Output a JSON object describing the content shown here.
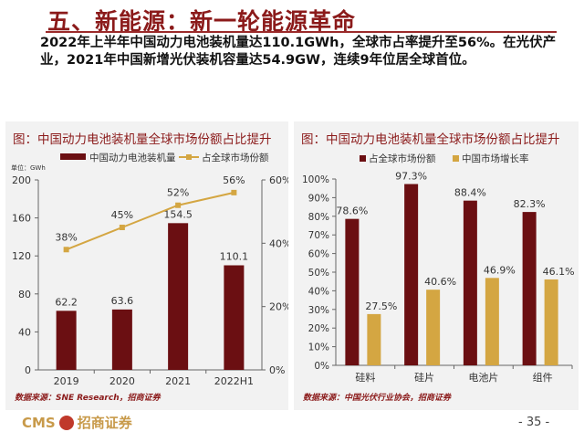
{
  "title": "五、新能源：新一轮能源革命",
  "summary": "2022年上半年中国动力电池装机量达110.1GWh，全球市占率提升至56%。在光伏产业，2021年中国新增光伏装机容量达54.9GW，连续9年位居全球首位。",
  "footer": {
    "logo_text": "CMS",
    "logo_cn": "招商证券",
    "page": "- 35 -"
  },
  "chart_data": [
    {
      "type": "bar+line",
      "title": "图：中国动力电池装机量全球市场份额占比提升",
      "unit": "单位：GWh",
      "categories": [
        "2019",
        "2020",
        "2021",
        "2022H1"
      ],
      "series": [
        {
          "name": "中国动力电池装机量",
          "type": "bar",
          "axis": "left",
          "values": [
            62.2,
            63.6,
            154.5,
            110.1
          ],
          "labels": [
            "62.2",
            "63.6",
            "154.5",
            "110.1"
          ],
          "color": "#6b0f12"
        },
        {
          "name": "占全球市场份额",
          "type": "line",
          "axis": "right",
          "values": [
            38,
            45,
            52,
            56
          ],
          "labels": [
            "38%",
            "45%",
            "52%",
            "56%"
          ],
          "color": "#d4a642"
        }
      ],
      "ylim": [
        0,
        200
      ],
      "yticks": [
        "0",
        "40",
        "80",
        "120",
        "160",
        "200"
      ],
      "y2lim": [
        0,
        60
      ],
      "y2ticks": [
        "0%",
        "20%",
        "40%",
        "60%"
      ],
      "legend": "top",
      "source": "数据来源：SNE Research，招商证券"
    },
    {
      "type": "bar",
      "title": "图：中国动力电池装机量全球市场份额占比提升",
      "categories": [
        "硅料",
        "硅片",
        "电池片",
        "组件"
      ],
      "series": [
        {
          "name": "占全球市场份额",
          "values": [
            78.6,
            97.3,
            88.4,
            82.3
          ],
          "labels": [
            "78.6%",
            "97.3%",
            "88.4%",
            "82.3%"
          ],
          "color": "#6b0f12"
        },
        {
          "name": "中国市场增长率",
          "values": [
            27.5,
            40.6,
            46.9,
            46.1
          ],
          "labels": [
            "27.5%",
            "40.6%",
            "46.9%",
            "46.1%"
          ],
          "color": "#d4a642"
        }
      ],
      "ylim": [
        0,
        100
      ],
      "yticks": [
        "0%",
        "10%",
        "20%",
        "30%",
        "40%",
        "50%",
        "60%",
        "70%",
        "80%",
        "90%",
        "100%"
      ],
      "legend": "top",
      "source": "数据来源：中国光伏行业协会，招商证券"
    }
  ]
}
